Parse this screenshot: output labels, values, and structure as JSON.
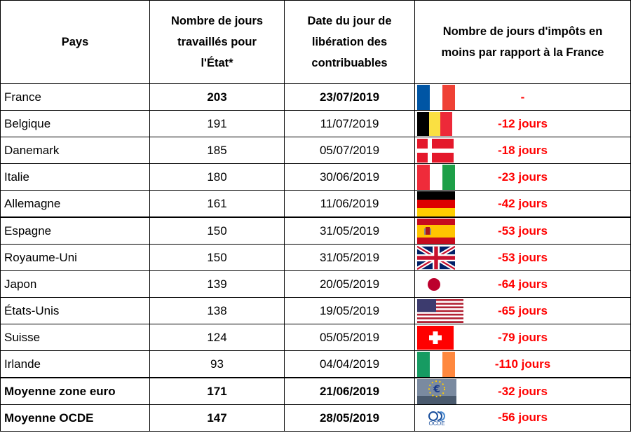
{
  "headers": {
    "country": "Pays",
    "days_line1": "Nombre de jours",
    "days_line2": "travaillés pour",
    "days_line3": "l'État*",
    "date_line1": "Date du jour de",
    "date_line2": "libération des",
    "date_line3": "contribuables",
    "diff_line1": "Nombre de jours d'impôts en",
    "diff_line2": "moins par rapport à la France"
  },
  "rows": [
    {
      "country": "France",
      "days": "203",
      "date": "23/07/2019",
      "diff": "-",
      "flag": "france-flag-icon",
      "bold_values": true
    },
    {
      "country": "Belgique",
      "days": "191",
      "date": "11/07/2019",
      "diff": "-12 jours",
      "flag": "belgium-flag-icon"
    },
    {
      "country": "Danemark",
      "days": "185",
      "date": "05/07/2019",
      "diff": "-18 jours",
      "flag": "denmark-flag-icon"
    },
    {
      "country": "Italie",
      "days": "180",
      "date": "30/06/2019",
      "diff": "-23 jours",
      "flag": "italy-flag-icon"
    },
    {
      "country": "Allemagne",
      "days": "161",
      "date": "11/06/2019",
      "diff": "-42 jours",
      "flag": "germany-flag-icon"
    },
    {
      "country": "Espagne",
      "days": "150",
      "date": "31/05/2019",
      "diff": "-53 jours",
      "flag": "spain-flag-icon"
    },
    {
      "country": "Royaume-Uni",
      "days": "150",
      "date": "31/05/2019",
      "diff": "-53 jours",
      "flag": "uk-flag-icon"
    },
    {
      "country": "Japon",
      "days": "139",
      "date": "20/05/2019",
      "diff": "-64 jours",
      "flag": "japan-flag-icon"
    },
    {
      "country": "États-Unis",
      "days": "138",
      "date": "19/05/2019",
      "diff": "-65 jours",
      "flag": "usa-flag-icon"
    },
    {
      "country": "Suisse",
      "days": "124",
      "date": "05/05/2019",
      "diff": "-79 jours",
      "flag": "switzerland-flag-icon"
    },
    {
      "country": "Irlande",
      "days": "93",
      "date": "04/04/2019",
      "diff": "-110 jours",
      "flag": "ireland-flag-icon"
    },
    {
      "country": "Moyenne zone euro",
      "days": "171",
      "date": "21/06/2019",
      "diff": "-32 jours",
      "flag": "euro-zone-emblem-icon"
    },
    {
      "country": "Moyenne OCDE",
      "days": "147",
      "date": "28/05/2019",
      "diff": "-56 jours",
      "flag": "oecd-logo-icon"
    }
  ],
  "oecd_logo_text": "OCDE",
  "colors": {
    "diff_text": "#ff0000",
    "france_blue": "#0055a4",
    "france_red": "#ef4135"
  }
}
